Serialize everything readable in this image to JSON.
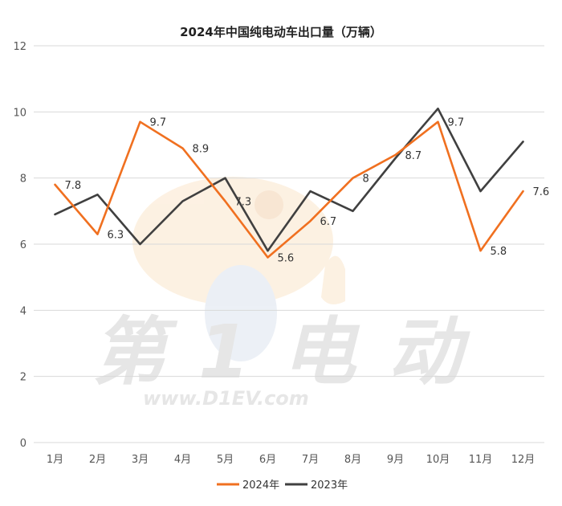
{
  "chart_data": {
    "type": "line",
    "title": "2024年中国纯电动车出口量（万辆）",
    "categories": [
      "1月",
      "2月",
      "3月",
      "4月",
      "5月",
      "6月",
      "7月",
      "8月",
      "9月",
      "10月",
      "11月",
      "12月"
    ],
    "ylim": [
      0,
      12
    ],
    "yticks": [
      0,
      2,
      4,
      6,
      8,
      10,
      12
    ],
    "grid": true,
    "legend_position": "bottom",
    "series": [
      {
        "name": "2024年",
        "color": "#F07020",
        "values": [
          7.8,
          6.3,
          9.7,
          8.9,
          7.3,
          5.6,
          6.7,
          8,
          8.7,
          9.7,
          5.8,
          7.6
        ],
        "labels": [
          "7.8",
          "6.3",
          "9.7",
          "8.9",
          "7.3",
          "5.6",
          "6.7",
          "8",
          "8.7",
          "9.7",
          "5.8",
          "7.6"
        ]
      },
      {
        "name": "2023年",
        "color": "#404040",
        "values": [
          6.9,
          7.5,
          6.0,
          7.3,
          8.0,
          5.8,
          7.6,
          7.0,
          8.6,
          10.1,
          7.6,
          9.1
        ]
      }
    ]
  },
  "watermark": {
    "brand_text": "第1电动",
    "url_text": "www.D1EV.com",
    "color": "#e9e9e9"
  }
}
